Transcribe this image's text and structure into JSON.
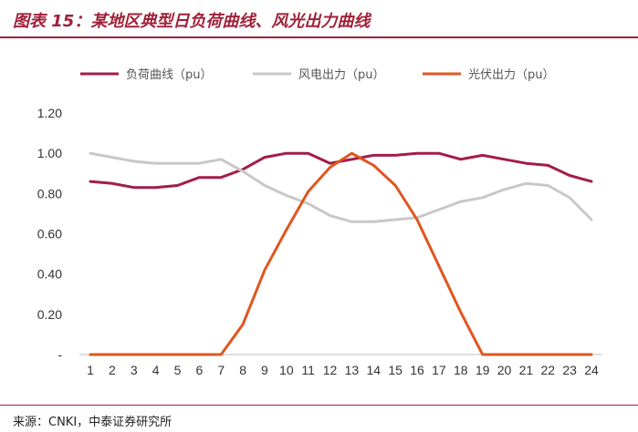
{
  "header": {
    "title": "图表 15：某地区典型日负荷曲线、风光出力曲线"
  },
  "footer": {
    "source": "来源：CNKI，中泰证券研究所"
  },
  "colors": {
    "accent": "#a0213a",
    "load": "#a31d49",
    "wind": "#c8c8c8",
    "solar": "#e0561f"
  },
  "chart_data": {
    "type": "line",
    "title": "",
    "xlabel": "",
    "ylabel": "",
    "categories": [
      "1",
      "2",
      "3",
      "4",
      "5",
      "6",
      "7",
      "8",
      "9",
      "10",
      "11",
      "12",
      "13",
      "14",
      "15",
      "16",
      "17",
      "18",
      "19",
      "20",
      "21",
      "22",
      "23",
      "24"
    ],
    "x": [
      1,
      2,
      3,
      4,
      5,
      6,
      7,
      8,
      9,
      10,
      11,
      12,
      13,
      14,
      15,
      16,
      17,
      18,
      19,
      20,
      21,
      22,
      23,
      24
    ],
    "ylim": [
      0,
      1.2
    ],
    "yticks": [
      0,
      0.2,
      0.4,
      0.6,
      0.8,
      1.0,
      1.2
    ],
    "ytick_labels": [
      "-",
      "0.20",
      "0.40",
      "0.60",
      "0.80",
      "1.00",
      "1.20"
    ],
    "grid": false,
    "legend_position": "top",
    "series": [
      {
        "name": "负荷曲线（pu）",
        "color": "#a31d49",
        "values": [
          0.86,
          0.85,
          0.83,
          0.83,
          0.84,
          0.88,
          0.88,
          0.92,
          0.98,
          1.0,
          1.0,
          0.95,
          0.97,
          0.99,
          0.99,
          1.0,
          1.0,
          0.97,
          0.99,
          0.97,
          0.95,
          0.94,
          0.89,
          0.86
        ]
      },
      {
        "name": "风电出力（pu）",
        "color": "#c8c8c8",
        "values": [
          1.0,
          0.98,
          0.96,
          0.95,
          0.95,
          0.95,
          0.97,
          0.91,
          0.84,
          0.79,
          0.75,
          0.69,
          0.66,
          0.66,
          0.67,
          0.68,
          0.72,
          0.76,
          0.78,
          0.82,
          0.85,
          0.84,
          0.78,
          0.67
        ]
      },
      {
        "name": "光伏出力（pu）",
        "color": "#e0561f",
        "values": [
          0,
          0,
          0,
          0,
          0,
          0,
          0,
          0.15,
          0.42,
          0.62,
          0.81,
          0.93,
          1.0,
          0.94,
          0.84,
          0.67,
          0.44,
          0.21,
          0,
          0,
          0,
          0,
          0,
          0
        ]
      }
    ]
  }
}
